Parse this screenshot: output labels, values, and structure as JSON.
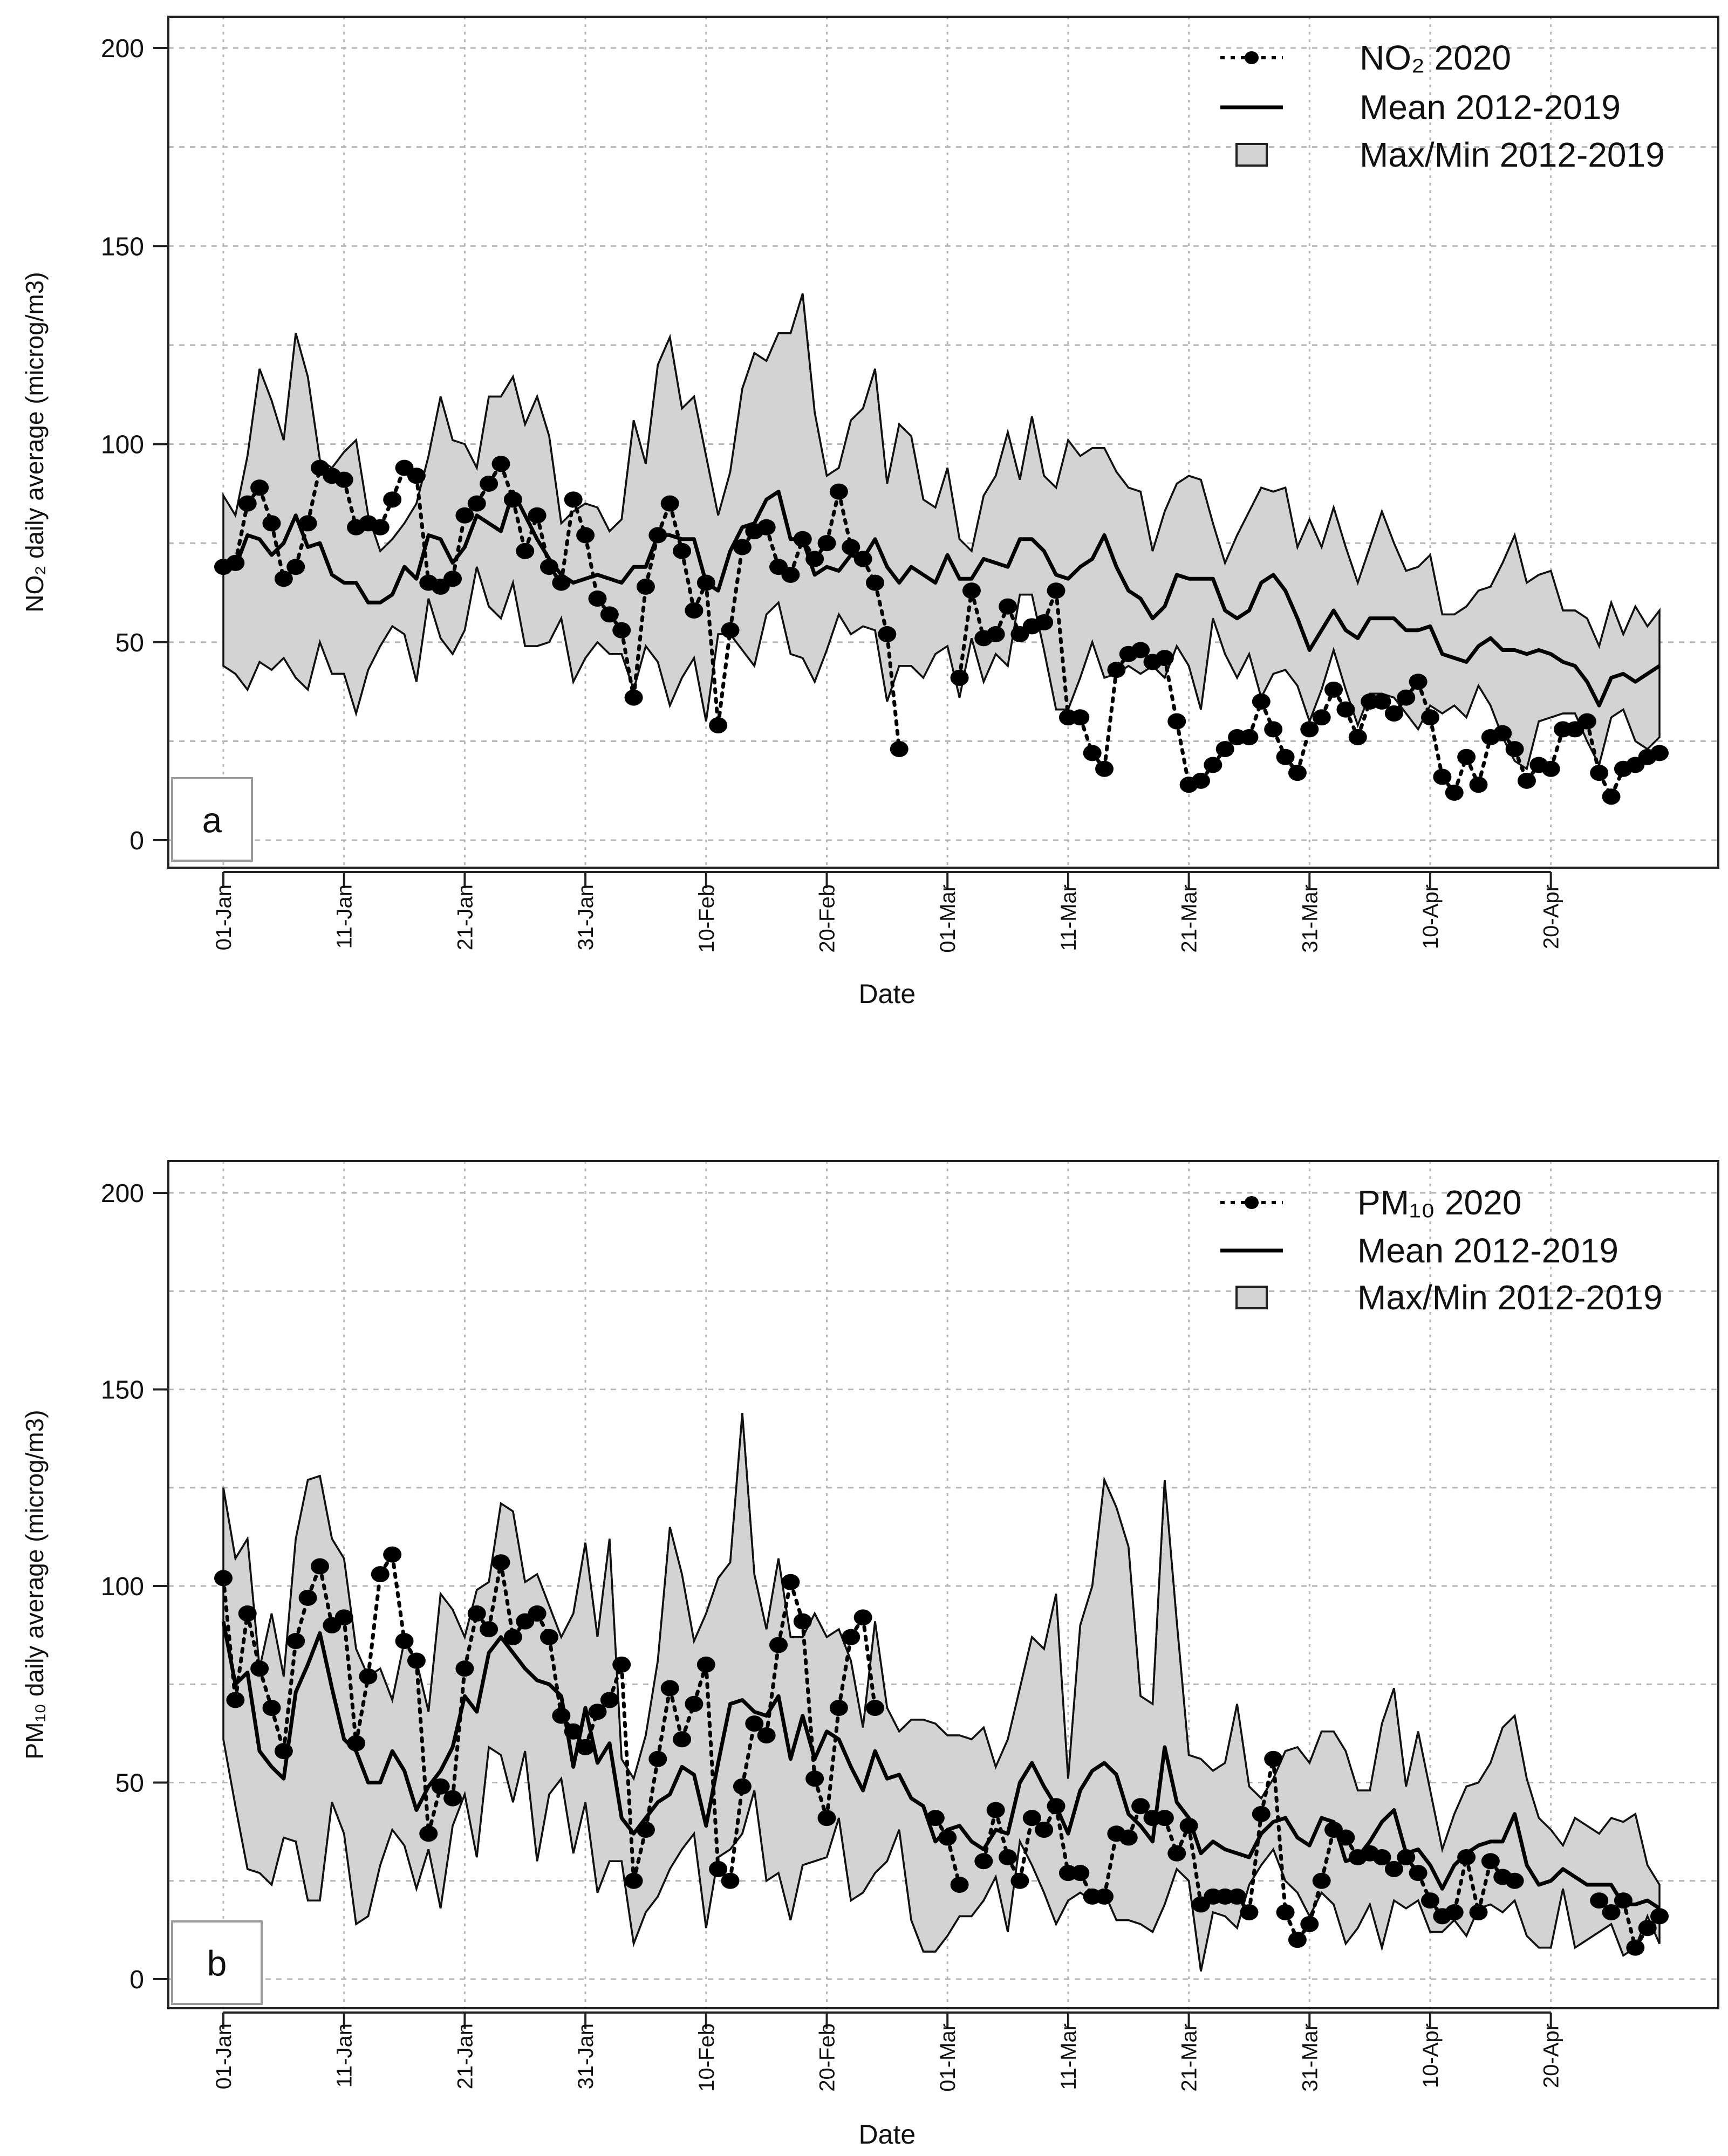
{
  "chart_data": [
    {
      "type": "line",
      "panel_label": "a",
      "ylabel": "NO₂ daily average (microg/m3)",
      "xlabel": "Date",
      "ylim": [
        0,
        200
      ],
      "yticks": [
        "0",
        "50",
        "100",
        "150",
        "200"
      ],
      "ytick_values": [
        0,
        50,
        100,
        150,
        200
      ],
      "xtick_labels": [
        "01-Jan",
        "11-Jan",
        "21-Jan",
        "31-Jan",
        "10-Feb",
        "20-Feb",
        "01-Mar",
        "11-Mar",
        "21-Mar",
        "31-Mar",
        "10-Apr",
        "20-Apr"
      ],
      "xtick_days": [
        0,
        10,
        20,
        30,
        40,
        50,
        60,
        70,
        80,
        90,
        100,
        110
      ],
      "x_unit": "day of year 2020 (0 = 01-Jan)",
      "grid": true,
      "legend_position": "top-right",
      "legend": [
        "NO₂ 2020",
        "Mean 2012-2019",
        "Max/Min 2012-2019"
      ],
      "series": [
        {
          "name": "NO2 2020",
          "style": "dotted-points",
          "values": [
            69,
            70,
            85,
            89,
            80,
            66,
            69,
            80,
            94,
            92,
            91,
            79,
            80,
            79,
            86,
            94,
            92,
            65,
            64,
            66,
            82,
            85,
            90,
            95,
            86,
            73,
            82,
            69,
            65,
            86,
            77,
            61,
            57,
            53,
            36,
            64,
            77,
            85,
            73,
            58,
            65,
            29,
            53,
            74,
            78,
            79,
            69,
            67,
            76,
            71,
            75,
            88,
            74,
            71,
            65,
            52,
            23,
            null,
            null,
            null,
            null,
            41,
            63,
            51,
            52,
            59,
            52,
            54,
            55,
            63,
            31,
            31,
            22,
            18,
            43,
            47,
            48,
            45,
            46,
            30,
            14,
            15,
            19,
            23,
            26,
            26,
            35,
            28,
            21,
            17,
            28,
            31,
            38,
            33,
            26,
            35,
            35,
            32,
            36,
            40,
            31,
            16,
            12,
            21,
            14,
            26,
            27,
            23,
            15,
            19,
            18,
            28,
            28,
            30,
            17,
            11,
            18,
            19,
            21,
            22
          ]
        },
        {
          "name": "Mean 2012-2019",
          "style": "solid",
          "values": [
            69,
            69,
            77,
            76,
            72,
            75,
            82,
            74,
            75,
            67,
            65,
            65,
            60,
            60,
            62,
            69,
            66,
            77,
            76,
            70,
            74,
            82,
            80,
            78,
            88,
            82,
            76,
            71,
            67,
            65,
            66,
            67,
            66,
            65,
            69,
            69,
            77,
            77,
            76,
            76,
            65,
            63,
            73,
            79,
            80,
            86,
            88,
            76,
            76,
            67,
            69,
            68,
            72,
            71,
            76,
            69,
            65,
            69,
            67,
            65,
            72,
            66,
            66,
            71,
            70,
            69,
            76,
            76,
            73,
            67,
            66,
            69,
            71,
            77,
            69,
            63,
            61,
            56,
            59,
            67,
            66,
            66,
            66,
            58,
            56,
            58,
            65,
            67,
            63,
            56,
            48,
            53,
            58,
            53,
            51,
            56,
            56,
            56,
            53,
            53,
            54,
            47,
            46,
            45,
            49,
            51,
            48,
            48,
            47,
            48,
            47,
            45,
            44,
            40,
            34,
            41,
            42,
            40,
            42,
            44
          ]
        },
        {
          "name": "Max 2012-2019",
          "style": "band-upper",
          "values": [
            87,
            82,
            97,
            119,
            111,
            101,
            128,
            117,
            96,
            94,
            98,
            101,
            82,
            73,
            76,
            80,
            85,
            97,
            112,
            101,
            100,
            94,
            112,
            112,
            117,
            105,
            112,
            102,
            80,
            83,
            85,
            84,
            78,
            81,
            106,
            95,
            120,
            127,
            109,
            112,
            97,
            82,
            93,
            114,
            123,
            121,
            128,
            128,
            138,
            108,
            92,
            94,
            106,
            109,
            119,
            90,
            105,
            102,
            86,
            84,
            94,
            76,
            73,
            87,
            92,
            103,
            91,
            107,
            92,
            89,
            101,
            97,
            99,
            99,
            93,
            89,
            88,
            73,
            83,
            90,
            92,
            91,
            80,
            70,
            77,
            83,
            89,
            88,
            89,
            74,
            81,
            74,
            84,
            74,
            65,
            74,
            83,
            75,
            68,
            69,
            72,
            57,
            57,
            59,
            63,
            64,
            70,
            77,
            65,
            67,
            68,
            58,
            58,
            56,
            49,
            60,
            52,
            59,
            54,
            58
          ]
        },
        {
          "name": "Min 2012-2019",
          "style": "band-lower",
          "values": [
            44,
            42,
            38,
            45,
            43,
            46,
            41,
            38,
            50,
            42,
            42,
            32,
            43,
            49,
            54,
            52,
            40,
            61,
            51,
            47,
            53,
            69,
            59,
            56,
            65,
            49,
            49,
            50,
            56,
            40,
            46,
            50,
            47,
            47,
            38,
            49,
            45,
            34,
            41,
            46,
            30,
            52,
            52,
            48,
            44,
            57,
            60,
            47,
            46,
            40,
            48,
            57,
            52,
            54,
            53,
            35,
            44,
            44,
            41,
            47,
            49,
            36,
            51,
            40,
            47,
            44,
            62,
            62,
            48,
            33,
            33,
            41,
            50,
            41,
            42,
            44,
            42,
            44,
            41,
            49,
            44,
            33,
            56,
            47,
            41,
            47,
            36,
            42,
            43,
            39,
            30,
            38,
            48,
            38,
            29,
            37,
            37,
            36,
            32,
            28,
            34,
            32,
            34,
            31,
            39,
            34,
            26,
            20,
            18,
            30,
            31,
            32,
            32,
            25,
            19,
            31,
            33,
            25,
            23,
            26
          ]
        }
      ]
    },
    {
      "type": "line",
      "panel_label": "b",
      "ylabel": "PM₁₀ daily average (microg/m3)",
      "xlabel": "Date",
      "ylim": [
        0,
        200
      ],
      "yticks": [
        "0",
        "50",
        "100",
        "150",
        "200"
      ],
      "ytick_values": [
        0,
        50,
        100,
        150,
        200
      ],
      "xtick_labels": [
        "01-Jan",
        "11-Jan",
        "21-Jan",
        "31-Jan",
        "10-Feb",
        "20-Feb",
        "01-Mar",
        "11-Mar",
        "21-Mar",
        "31-Mar",
        "10-Apr",
        "20-Apr"
      ],
      "xtick_days": [
        0,
        10,
        20,
        30,
        40,
        50,
        60,
        70,
        80,
        90,
        100,
        110
      ],
      "x_unit": "day of year 2020 (0 = 01-Jan)",
      "grid": true,
      "legend_position": "top-right",
      "legend": [
        "PM₁₀ 2020",
        "Mean 2012-2019",
        "Max/Min 2012-2019"
      ],
      "series": [
        {
          "name": "PM10 2020",
          "style": "dotted-points",
          "values": [
            102,
            71,
            93,
            79,
            69,
            58,
            86,
            97,
            105,
            90,
            92,
            60,
            77,
            103,
            108,
            86,
            81,
            37,
            49,
            46,
            79,
            93,
            89,
            106,
            87,
            91,
            93,
            87,
            67,
            63,
            59,
            68,
            71,
            80,
            25,
            38,
            56,
            74,
            61,
            70,
            80,
            28,
            25,
            49,
            65,
            62,
            85,
            101,
            91,
            51,
            41,
            69,
            87,
            92,
            69,
            null,
            null,
            null,
            null,
            41,
            36,
            24,
            null,
            30,
            43,
            31,
            25,
            41,
            38,
            44,
            27,
            27,
            21,
            21,
            37,
            36,
            44,
            41,
            41,
            32,
            39,
            19,
            21,
            21,
            21,
            17,
            42,
            56,
            17,
            10,
            14,
            25,
            38,
            36,
            31,
            32,
            31,
            28,
            31,
            27,
            20,
            16,
            17,
            31,
            17,
            30,
            26,
            25,
            null,
            null,
            null,
            null,
            null,
            null,
            20,
            17,
            20,
            8,
            13,
            16
          ]
        },
        {
          "name": "Mean 2012-2019",
          "style": "solid",
          "values": [
            91,
            75,
            78,
            58,
            54,
            51,
            73,
            80,
            88,
            74,
            61,
            58,
            50,
            50,
            58,
            53,
            43,
            49,
            53,
            59,
            72,
            68,
            83,
            87,
            83,
            79,
            76,
            75,
            72,
            54,
            69,
            55,
            60,
            41,
            37,
            41,
            45,
            47,
            54,
            52,
            39,
            55,
            70,
            71,
            68,
            67,
            72,
            56,
            67,
            56,
            63,
            61,
            54,
            48,
            58,
            51,
            52,
            46,
            44,
            35,
            38,
            39,
            35,
            33,
            38,
            37,
            50,
            55,
            49,
            44,
            37,
            48,
            53,
            55,
            52,
            42,
            39,
            35,
            59,
            45,
            41,
            32,
            35,
            33,
            32,
            31,
            37,
            40,
            41,
            36,
            34,
            41,
            40,
            30,
            31,
            35,
            40,
            43,
            32,
            33,
            29,
            23,
            29,
            32,
            34,
            35,
            35,
            42,
            29,
            24,
            25,
            28,
            26,
            24,
            24,
            24,
            19,
            19,
            20,
            18
          ]
        },
        {
          "name": "Max 2012-2019",
          "style": "band-upper",
          "values": [
            125,
            107,
            112,
            79,
            93,
            77,
            112,
            127,
            128,
            112,
            107,
            84,
            77,
            79,
            71,
            86,
            81,
            68,
            98,
            94,
            87,
            99,
            101,
            121,
            119,
            101,
            103,
            95,
            87,
            93,
            111,
            87,
            112,
            56,
            51,
            62,
            81,
            115,
            103,
            86,
            93,
            102,
            106,
            144,
            103,
            89,
            107,
            87,
            87,
            93,
            87,
            89,
            81,
            64,
            91,
            69,
            63,
            66,
            66,
            65,
            62,
            62,
            61,
            64,
            54,
            61,
            74,
            87,
            84,
            98,
            51,
            90,
            100,
            127,
            120,
            110,
            72,
            70,
            127,
            91,
            57,
            56,
            53,
            55,
            70,
            49,
            46,
            51,
            58,
            59,
            55,
            63,
            63,
            58,
            48,
            48,
            65,
            74,
            49,
            63,
            48,
            33,
            42,
            49,
            50,
            55,
            64,
            67,
            51,
            41,
            38,
            34,
            41,
            39,
            37,
            41,
            40,
            42,
            29,
            24
          ]
        },
        {
          "name": "Min 2012-2019",
          "style": "band-lower",
          "values": [
            61,
            44,
            28,
            27,
            24,
            36,
            35,
            20,
            20,
            45,
            37,
            14,
            16,
            29,
            38,
            34,
            23,
            33,
            18,
            39,
            47,
            31,
            59,
            57,
            45,
            58,
            30,
            47,
            51,
            32,
            45,
            22,
            30,
            30,
            9,
            17,
            21,
            28,
            33,
            37,
            13,
            31,
            33,
            37,
            48,
            25,
            27,
            15,
            29,
            30,
            31,
            41,
            20,
            22,
            27,
            30,
            38,
            15,
            7,
            7,
            11,
            16,
            16,
            20,
            26,
            12,
            35,
            29,
            22,
            14,
            20,
            22,
            20,
            22,
            15,
            15,
            14,
            12,
            19,
            28,
            25,
            2,
            17,
            16,
            13,
            24,
            29,
            33,
            25,
            22,
            16,
            22,
            19,
            9,
            13,
            19,
            8,
            20,
            18,
            20,
            12,
            12,
            15,
            11,
            18,
            19,
            17,
            20,
            11,
            8,
            8,
            23,
            8,
            10,
            12,
            14,
            6,
            8,
            16,
            9
          ]
        }
      ]
    }
  ]
}
